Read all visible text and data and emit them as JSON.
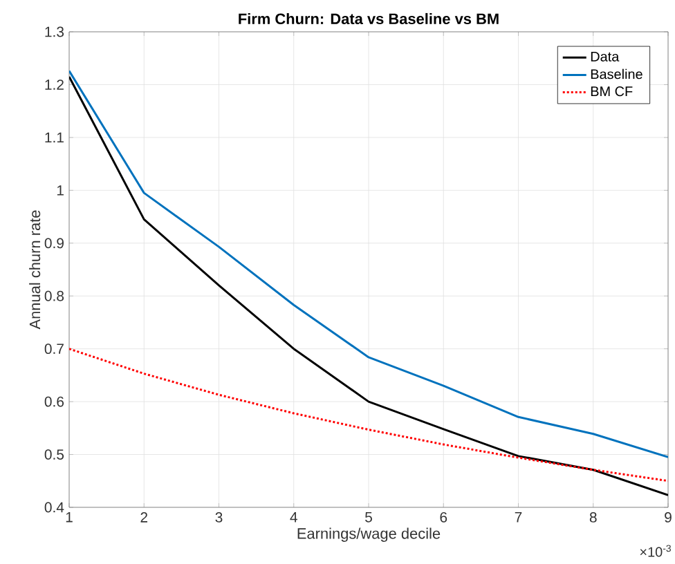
{
  "chart_data": {
    "type": "line",
    "title": "Firm Churn: Data vs Baseline vs BM",
    "xlabel": "Earnings/wage decile",
    "ylabel": "Annual churn rate",
    "x": [
      1,
      2,
      3,
      4,
      5,
      6,
      7,
      8,
      9
    ],
    "series": [
      {
        "name": "Data",
        "color": "#000000",
        "line_style": "solid",
        "values": [
          1.215,
          0.945,
          0.82,
          0.7,
          0.6,
          0.548,
          0.497,
          0.471,
          0.423
        ]
      },
      {
        "name": "Baseline",
        "color": "#0072bd",
        "line_style": "solid",
        "values": [
          1.226,
          0.995,
          0.893,
          0.783,
          0.684,
          0.63,
          0.571,
          0.539,
          0.495
        ]
      },
      {
        "name": "BM CF",
        "color": "#ff0000",
        "line_style": "dotted",
        "values": [
          0.7,
          0.653,
          0.613,
          0.578,
          0.547,
          0.519,
          0.494,
          0.471,
          0.45
        ]
      }
    ],
    "xlim": [
      1,
      9
    ],
    "xticks": [
      1,
      2,
      3,
      4,
      5,
      6,
      7,
      8,
      9
    ],
    "ylim": [
      0.4,
      1.3
    ],
    "yticks": [
      0.4,
      0.5,
      0.6,
      0.7,
      0.8,
      0.9,
      1,
      1.1,
      1.2,
      1.3
    ],
    "grid": true,
    "legend": "top right",
    "marker": "none",
    "annotations": [
      "×10$^{-3}$"
    ]
  }
}
